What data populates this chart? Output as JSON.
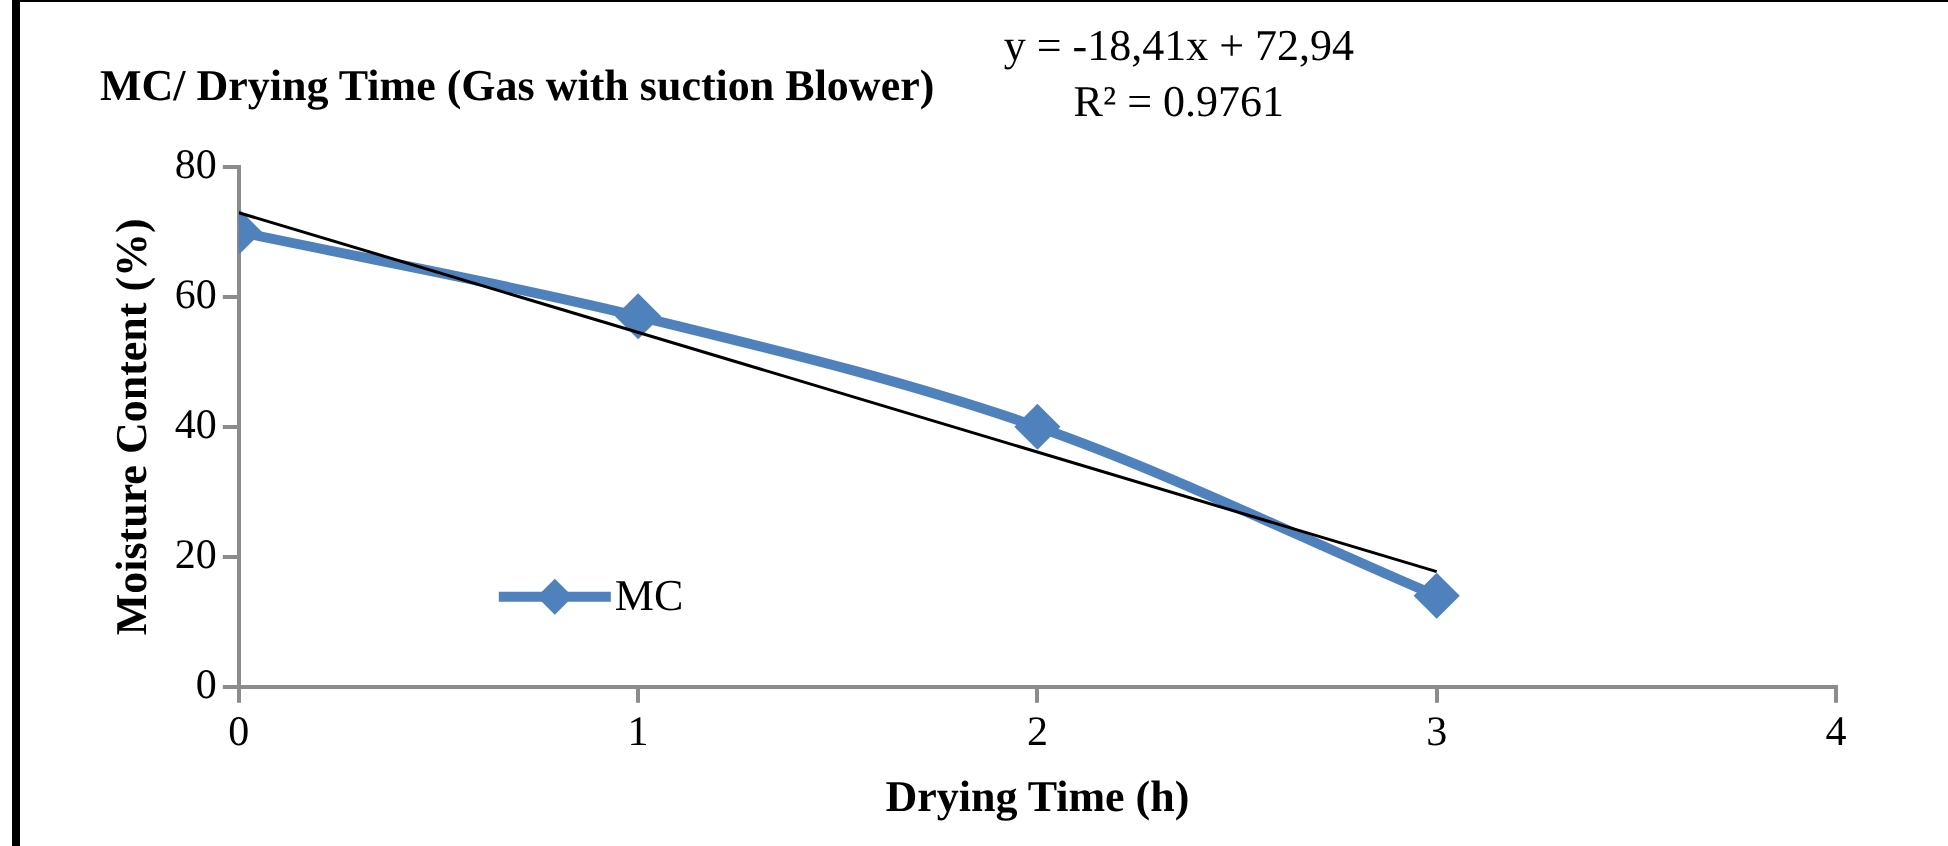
{
  "chart_data": {
    "type": "line",
    "title": "MC/ Drying Time (Gas with suction Blower)",
    "xlabel": "Drying Time (h)",
    "ylabel": "Moisture Content (%)",
    "x": [
      0,
      1,
      2,
      3
    ],
    "series": [
      {
        "name": "MC",
        "color": "#4f81bd",
        "values": [
          70,
          57,
          40,
          14
        ],
        "marker": "diamond",
        "line_style": "solid"
      },
      {
        "type": "line",
        "x": [
          0,
          3
        ],
        "color": "#000000",
        "values": [
          72.94,
          17.71
        ],
        "marker": "none",
        "line_style": "solid"
      }
    ],
    "annotations": [
      "y = -18,41x + 72,94",
      "R² = 0.9761"
    ],
    "xlim": [
      0,
      4
    ],
    "xticks": [
      0,
      1,
      2,
      3,
      4
    ],
    "ylim": [
      0,
      80
    ],
    "yticks": [
      0,
      20,
      40,
      60,
      80
    ],
    "grid": false,
    "legend": "bottom left"
  }
}
